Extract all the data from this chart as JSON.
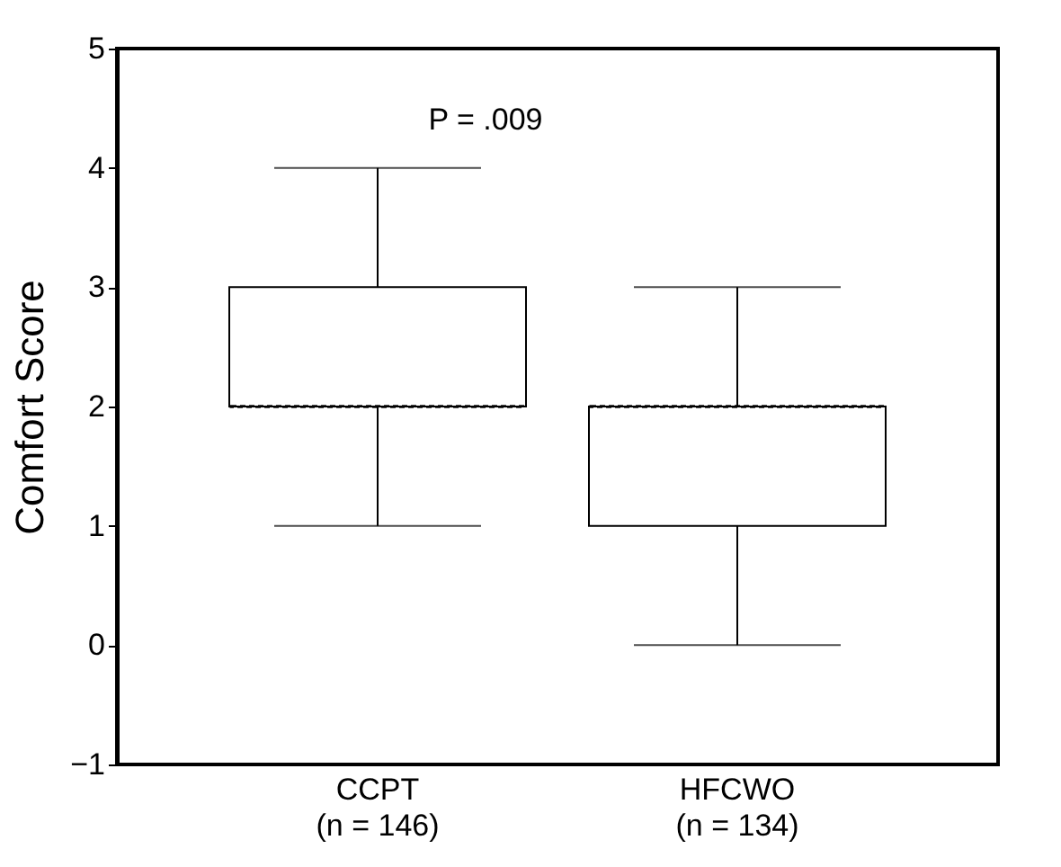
{
  "chart_data": {
    "type": "box",
    "ylabel": "Comfort Score",
    "categories": [
      "CCPT\n(n = 146)",
      "HFCWO\n(n = 134)"
    ],
    "boxes": [
      {
        "low": 1,
        "q1": 2,
        "median": 2,
        "q3": 3,
        "high": 4
      },
      {
        "low": 0,
        "q1": 1,
        "median": 2,
        "q3": 2,
        "high": 3
      }
    ],
    "ylim": [
      -1,
      5
    ],
    "yticks": [
      -1,
      0,
      1,
      2,
      3,
      4,
      5
    ],
    "grid": false,
    "annotations": [
      "P = .009"
    ]
  }
}
